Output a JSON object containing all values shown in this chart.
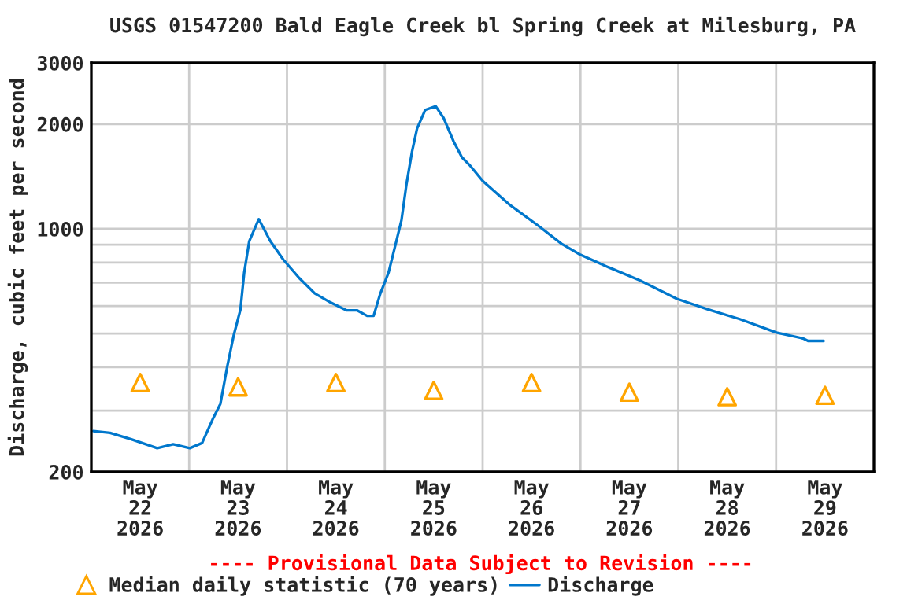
{
  "chart_data": {
    "type": "line",
    "title": "USGS 01547200 Bald Eagle Creek bl Spring Creek at Milesburg, PA",
    "ylabel": "Discharge, cubic feet per second",
    "log": "y",
    "grid": true,
    "legend": "bottom",
    "xlim": [
      "2026-05-22",
      "2026-05-30"
    ],
    "xticks": [
      {
        "value": "2026-05-22T12:00",
        "label": "May\n22\n2026"
      },
      {
        "value": "2026-05-23T12:00",
        "label": "May\n23\n2026"
      },
      {
        "value": "2026-05-24T12:00",
        "label": "May\n24\n2026"
      },
      {
        "value": "2026-05-25T12:00",
        "label": "May\n25\n2026"
      },
      {
        "value": "2026-05-26T12:00",
        "label": "May\n26\n2026"
      },
      {
        "value": "2026-05-27T12:00",
        "label": "May\n27\n2026"
      },
      {
        "value": "2026-05-28T12:00",
        "label": "May\n28\n2026"
      },
      {
        "value": "2026-05-29T12:00",
        "label": "May\n29\n2026"
      },
      {
        "value": "2026-05-23",
        "label": null
      },
      {
        "value": "2026-05-24",
        "label": null
      },
      {
        "value": "2026-05-25",
        "label": null
      },
      {
        "value": "2026-05-26",
        "label": null
      },
      {
        "value": "2026-05-27",
        "label": null
      },
      {
        "value": "2026-05-28",
        "label": null
      },
      {
        "value": "2026-05-29",
        "label": null
      }
    ],
    "ylim": [
      200,
      3000
    ],
    "yticks": [
      200,
      {
        "value": 300,
        "label": null
      },
      {
        "value": 400,
        "label": null
      },
      {
        "value": 500,
        "label": null
      },
      {
        "value": 600,
        "label": null
      },
      {
        "value": 700,
        "label": null
      },
      {
        "value": 800,
        "label": null
      },
      {
        "value": 900,
        "label": null
      },
      1000,
      2000,
      3000
    ],
    "annotations": [
      "---- Provisional Data Subject to Revision ----"
    ],
    "series": [
      {
        "name": "Median daily statistic (70 years)",
        "type": "scatter",
        "marker": "triangle",
        "color": "#ffa500",
        "x": [
          "2026-05-22T12:00",
          "2026-05-23T12:00",
          "2026-05-24T12:00",
          "2026-05-25T12:00",
          "2026-05-26T12:00",
          "2026-05-27T12:00",
          "2026-05-28T12:00",
          "2026-05-29T12:00"
        ],
        "values": [
          361,
          351,
          361,
          343,
          361,
          339,
          329,
          332
        ]
      },
      {
        "name": "Discharge",
        "marker": "none",
        "line_style": "solid",
        "color": "#0077cc",
        "x": [
          "2026-05-22T00:30",
          "2026-05-22T04:35",
          "2026-05-22T09:50",
          "2026-05-22T16:10",
          "2026-05-22T20:05",
          "2026-05-23T00:10",
          "2026-05-23T03:10",
          "2026-05-23T05:45",
          "2026-05-23T07:40",
          "2026-05-23T09:20",
          "2026-05-23T10:55",
          "2026-05-23T12:35",
          "2026-05-23T13:30",
          "2026-05-23T14:45",
          "2026-05-23T17:05",
          "2026-05-23T19:55",
          "2026-05-23T23:05",
          "2026-05-24T03:00",
          "2026-05-24T06:50",
          "2026-05-24T10:40",
          "2026-05-24T14:35",
          "2026-05-24T17:10",
          "2026-05-24T19:40",
          "2026-05-24T21:15",
          "2026-05-24T22:55",
          "2026-05-25T00:55",
          "2026-05-25T02:50",
          "2026-05-25T04:05",
          "2026-05-25T05:20",
          "2026-05-25T06:40",
          "2026-05-25T07:55",
          "2026-05-25T09:55",
          "2026-05-25T12:30",
          "2026-05-25T14:25",
          "2026-05-25T16:55",
          "2026-05-25T18:55",
          "2026-05-25T20:50",
          "2026-05-26T00:00",
          "2026-05-26T06:30",
          "2026-05-26T13:35",
          "2026-05-26T19:20",
          "2026-05-26T23:50",
          "2026-05-27T06:55",
          "2026-05-27T14:40",
          "2026-05-27T23:40",
          "2026-05-28T07:25",
          "2026-05-28T15:05",
          "2026-05-29T00:05",
          "2026-05-29T06:35",
          "2026-05-29T07:50",
          "2026-05-29T11:40"
        ],
        "values": [
          262,
          259,
          248,
          234,
          240,
          234,
          242,
          283,
          314,
          401,
          493,
          586,
          748,
          922,
          1066,
          922,
          816,
          722,
          652,
          614,
          583,
          583,
          562,
          562,
          652,
          748,
          922,
          1058,
          1348,
          1664,
          1944,
          2198,
          2252,
          2084,
          1780,
          1606,
          1524,
          1374,
          1176,
          1022,
          906,
          844,
          775,
          710,
          629,
          586,
          550,
          503,
          484,
          476,
          476
        ]
      }
    ]
  }
}
